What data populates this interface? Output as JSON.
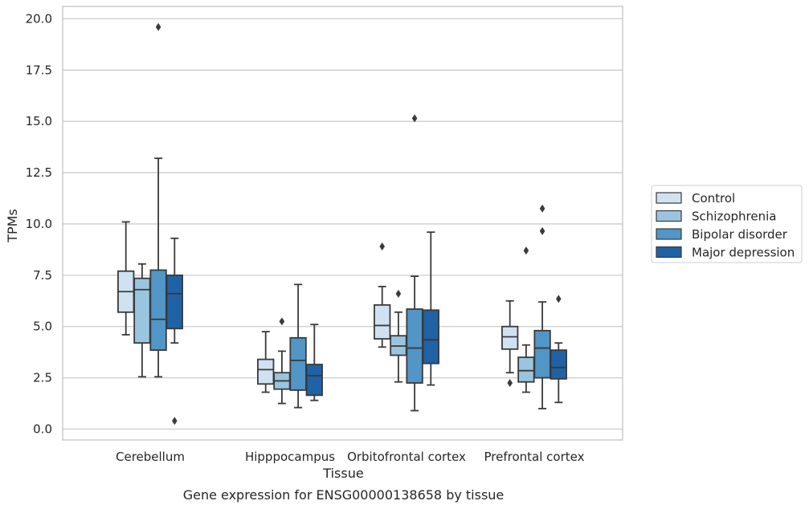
{
  "chart_data": {
    "type": "boxplot",
    "caption": "Gene expression for ENSG00000138658 by tissue",
    "xlabel": "Tissue",
    "ylabel": "TPMs",
    "ylim": [
      -0.5,
      20.5
    ],
    "yticks": [
      0.0,
      2.5,
      5.0,
      7.5,
      10.0,
      12.5,
      15.0,
      17.5,
      20.0
    ],
    "ytick_labels": [
      "0.0",
      "2.5",
      "5.0",
      "7.5",
      "10.0",
      "12.5",
      "15.0",
      "17.5",
      "20.0"
    ],
    "grid": "horizontal",
    "legend_position": "right",
    "categories": [
      "Cerebellum",
      "Hipppocampus",
      "Orbitofrontal cortex",
      "Prefrontal cortex"
    ],
    "series": [
      {
        "name": "Control",
        "color": "#d0e2f2",
        "boxes": [
          {
            "whislo": 4.6,
            "q1": 5.7,
            "median": 6.7,
            "q3": 7.7,
            "whishi": 10.1,
            "fliers": []
          },
          {
            "whislo": 1.8,
            "q1": 2.2,
            "median": 2.9,
            "q3": 3.4,
            "whishi": 4.75,
            "fliers": []
          },
          {
            "whislo": 4.0,
            "q1": 4.4,
            "median": 5.05,
            "q3": 6.05,
            "whishi": 6.95,
            "fliers": [
              8.9
            ]
          },
          {
            "whislo": 2.75,
            "q1": 3.9,
            "median": 4.5,
            "q3": 5.0,
            "whishi": 6.25,
            "fliers": [
              2.25
            ]
          }
        ]
      },
      {
        "name": "Schizophrenia",
        "color": "#9ac5e0",
        "boxes": [
          {
            "whislo": 2.55,
            "q1": 4.2,
            "median": 6.8,
            "q3": 7.35,
            "whishi": 8.05,
            "fliers": []
          },
          {
            "whislo": 1.25,
            "q1": 1.95,
            "median": 2.35,
            "q3": 2.75,
            "whishi": 3.8,
            "fliers": [
              5.25
            ]
          },
          {
            "whislo": 2.3,
            "q1": 3.6,
            "median": 4.05,
            "q3": 4.55,
            "whishi": 5.7,
            "fliers": [
              6.6
            ]
          },
          {
            "whislo": 1.8,
            "q1": 2.3,
            "median": 2.85,
            "q3": 3.5,
            "whishi": 4.1,
            "fliers": [
              8.7
            ]
          }
        ]
      },
      {
        "name": "Bipolar disorder",
        "color": "#5196c6",
        "boxes": [
          {
            "whislo": 2.55,
            "q1": 3.85,
            "median": 5.35,
            "q3": 7.75,
            "whishi": 13.2,
            "fliers": [
              19.6
            ]
          },
          {
            "whislo": 1.05,
            "q1": 1.9,
            "median": 3.35,
            "q3": 4.45,
            "whishi": 7.05,
            "fliers": []
          },
          {
            "whislo": 0.9,
            "q1": 2.25,
            "median": 3.95,
            "q3": 5.85,
            "whishi": 7.45,
            "fliers": [
              15.15
            ]
          },
          {
            "whislo": 1.0,
            "q1": 2.5,
            "median": 3.95,
            "q3": 4.8,
            "whishi": 6.2,
            "fliers": [
              9.65,
              10.75
            ]
          }
        ]
      },
      {
        "name": "Major depression",
        "color": "#1f62a5",
        "boxes": [
          {
            "whislo": 4.2,
            "q1": 4.9,
            "median": 6.6,
            "q3": 7.5,
            "whishi": 9.3,
            "fliers": [
              0.4
            ]
          },
          {
            "whislo": 1.4,
            "q1": 1.65,
            "median": 2.6,
            "q3": 3.15,
            "whishi": 5.1,
            "fliers": []
          },
          {
            "whislo": 2.15,
            "q1": 3.2,
            "median": 4.35,
            "q3": 5.8,
            "whishi": 9.6,
            "fliers": []
          },
          {
            "whislo": 1.3,
            "q1": 2.45,
            "median": 3.0,
            "q3": 3.85,
            "whishi": 4.2,
            "fliers": [
              6.35
            ]
          }
        ]
      }
    ]
  }
}
